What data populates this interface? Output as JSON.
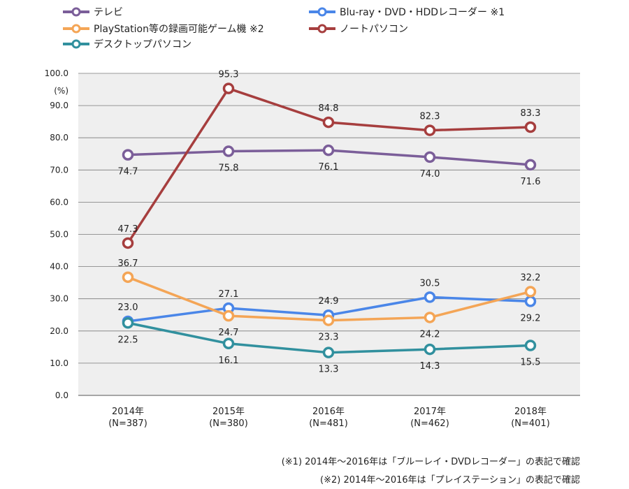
{
  "chart_data": {
    "type": "line",
    "unit_label": "(%)",
    "categories": [
      {
        "year": "2014年",
        "n": "(N=387)"
      },
      {
        "year": "2015年",
        "n": "(N=380)"
      },
      {
        "year": "2016年",
        "n": "(N=481)"
      },
      {
        "year": "2017年",
        "n": "(N=462)"
      },
      {
        "year": "2018年",
        "n": "(N=401)"
      }
    ],
    "ylim": [
      0,
      100
    ],
    "yticks": [
      "0.0",
      "10.0",
      "20.0",
      "30.0",
      "40.0",
      "50.0",
      "60.0",
      "70.0",
      "80.0",
      "90.0",
      "100.0"
    ],
    "grid": true,
    "series": [
      {
        "name": "テレビ",
        "color": "#7b5e99",
        "values": [
          74.7,
          75.8,
          76.1,
          74.0,
          71.6
        ],
        "labels": [
          "74.7",
          "75.8",
          "76.1",
          "74.0",
          "71.6"
        ]
      },
      {
        "name": "Blu-ray・DVD・HDDレコーダー ※1",
        "color": "#4a86e8",
        "values": [
          23.0,
          27.1,
          24.9,
          30.5,
          29.2
        ],
        "labels": [
          "23.0",
          "27.1",
          "24.9",
          "30.5",
          "29.2"
        ]
      },
      {
        "name": "PlayStation等の録画可能ゲーム機 ※2",
        "color": "#f4a556",
        "values": [
          36.7,
          24.7,
          23.3,
          24.2,
          32.2
        ],
        "labels": [
          "36.7",
          "24.7",
          "23.3",
          "24.2",
          "32.2"
        ]
      },
      {
        "name": "ノートパソコン",
        "color": "#a63e3e",
        "values": [
          47.3,
          95.3,
          84.8,
          82.3,
          83.3
        ],
        "labels": [
          "47.3",
          "95.3",
          "84.8",
          "82.3",
          "83.3"
        ]
      },
      {
        "name": "デスクトップパソコン",
        "color": "#31909e",
        "values": [
          22.5,
          16.1,
          13.3,
          14.3,
          15.5
        ],
        "labels": [
          "22.5",
          "16.1",
          "13.3",
          "14.3",
          "15.5"
        ]
      }
    ]
  },
  "notes": {
    "note1": "(※1) 2014年～2016年は「ブルーレイ・DVDレコーダー」の表記で確認",
    "note2": "(※2) 2014年～2016年は「プレイステーション」の表記で確認"
  }
}
